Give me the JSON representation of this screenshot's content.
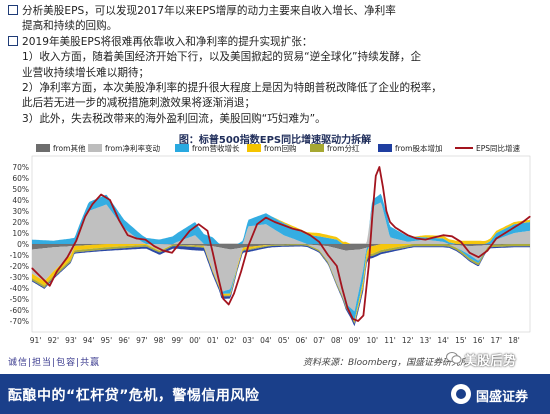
{
  "bullets": [
    "分析美股EPS，可以发现2017年以来EPS增厚的动力主要来自收入增长、净利率",
    "提高和持续的回购。",
    "2019年美股EPS将很难再依靠收入和净利率的提升实现扩张：",
    "1）收入方面，随着美国经济开始下行，以及美国掀起的贸易“逆全球化”持续发酵，企",
    "业营收持续增长难以期待；",
    "2）净利率方面，本次美股净利率的提升很大程度上是因为特朗普税改降低了企业的税率，",
    "此后若无进一步的减税措施刺激效果将逐渐消退；",
    "3）此外，失去税改带来的海外盈利回流，美股回购“巧妇难为”。"
  ],
  "chart_data": {
    "type": "area",
    "title": "图：标普500指数EPS同比增速驱动力拆解",
    "ylim": [
      -80,
      80
    ],
    "yticks": [
      "70%",
      "60%",
      "50%",
      "40%",
      "30%",
      "20%",
      "10%",
      "0%",
      "-10%",
      "-20%",
      "-30%",
      "-40%",
      "-50%",
      "-60%",
      "-70%"
    ],
    "ytick_values": [
      70,
      60,
      50,
      40,
      30,
      20,
      10,
      0,
      -10,
      -20,
      -30,
      -40,
      -50,
      -60,
      -70
    ],
    "xticks": [
      "91'",
      "92'",
      "93'",
      "94'",
      "95'",
      "96'",
      "97'",
      "98'",
      "99'",
      "00'",
      "01'",
      "02'",
      "03'",
      "04'",
      "05'",
      "06'",
      "07'",
      "08'",
      "09'",
      "10'",
      "11'",
      "12'",
      "13'",
      "14'",
      "15'",
      "16'",
      "17'",
      "18'"
    ],
    "x_years": [
      1991,
      1992,
      1993,
      1994,
      1995,
      1996,
      1997,
      1998,
      1999,
      2000,
      2001,
      2002,
      2003,
      2004,
      2005,
      2006,
      2007,
      2008,
      2009,
      2010,
      2011,
      2012,
      2013,
      2014,
      2015,
      2016,
      2017,
      2018
    ],
    "xlim": [
      1990.8,
      2018.9
    ],
    "legend_placement": "top",
    "series": [
      {
        "name": "from其他",
        "color": "#6d6d6d",
        "kind": "stacked",
        "x": [
          1990.8,
          1992,
          1994,
          1995,
          1996,
          1998,
          2001,
          2002,
          2002.8,
          2004,
          2006,
          2007.5,
          2008.5,
          2009.3,
          2010,
          2010.5,
          2012,
          2014,
          2015.5,
          2016.5,
          2018,
          2018.9
        ],
        "values": [
          -5,
          -3,
          -1,
          0,
          0,
          0,
          -2,
          -5,
          -3,
          -1,
          0,
          -2,
          -6,
          -5,
          -2,
          0,
          0,
          0,
          -2,
          -1,
          0,
          0
        ]
      },
      {
        "name": "from净利率变动",
        "color": "#bdbdbd",
        "kind": "stacked",
        "x": [
          1990.8,
          1991.5,
          1992,
          1993,
          1993.5,
          1994,
          1995,
          1996,
          1997,
          1998,
          1999,
          2000,
          2000.5,
          2001,
          2001.5,
          2002,
          2003,
          2004,
          2005,
          2006,
          2007,
          2007.5,
          2008,
          2008.5,
          2009,
          2009.5,
          2010,
          2010.5,
          2011,
          2012,
          2013,
          2014,
          2015,
          2015.5,
          2016,
          2016.5,
          2017,
          2018,
          2018.9
        ],
        "values": [
          -22,
          -30,
          -22,
          -8,
          12,
          30,
          36,
          14,
          2,
          -6,
          2,
          8,
          0,
          -22,
          -40,
          -36,
          16,
          18,
          8,
          2,
          -4,
          -14,
          -32,
          -48,
          -56,
          -18,
          34,
          38,
          6,
          2,
          4,
          2,
          -4,
          -8,
          -14,
          -2,
          4,
          10,
          12
        ]
      },
      {
        "name": "from营收增长",
        "color": "#29a9e0",
        "kind": "stacked",
        "x": [
          1990.8,
          1992,
          1993,
          1994,
          1995,
          1996,
          1997,
          1998,
          1999,
          2000,
          2001,
          2001.5,
          2002,
          2003,
          2004,
          2005,
          2006,
          2007,
          2008,
          2008.5,
          2009,
          2009.5,
          2010,
          2011,
          2012,
          2013,
          2014,
          2015,
          2015.5,
          2016,
          2016.5,
          2017,
          2018,
          2018.9
        ],
        "values": [
          4,
          3,
          5,
          8,
          9,
          8,
          6,
          4,
          8,
          12,
          6,
          -2,
          -4,
          6,
          10,
          11,
          9,
          7,
          4,
          -2,
          -8,
          -10,
          6,
          10,
          5,
          2,
          3,
          -1,
          -3,
          -2,
          1,
          6,
          8,
          8
        ]
      },
      {
        "name": "from回购",
        "color": "#f5c400",
        "kind": "stacked",
        "x": [
          1990.8,
          1993,
          1995,
          1997,
          1999,
          2001,
          2003,
          2005,
          2007,
          2008.5,
          2009.5,
          2010,
          2011,
          2013,
          2015,
          2016,
          2017,
          2018,
          2018.9
        ],
        "values": [
          -4,
          -4,
          -3,
          -1,
          0,
          -1,
          -2,
          1,
          3,
          2,
          -5,
          -7,
          -4,
          2,
          3,
          3,
          2,
          2,
          2
        ]
      },
      {
        "name": "from分红",
        "color": "#a6a832",
        "kind": "stacked",
        "x": [
          1990.8,
          1995,
          2000,
          2005,
          2010,
          2015,
          2018.9
        ],
        "values": [
          -2,
          -2,
          -1,
          -1,
          -2,
          -2,
          -2
        ]
      },
      {
        "name": "from股本增加",
        "color": "#1f3ea0",
        "kind": "stacked",
        "x": [
          1990.8,
          1994,
          1998,
          2000,
          2002,
          2005,
          2008,
          2009.5,
          2010,
          2012,
          2015,
          2018.9
        ],
        "values": [
          -1,
          -1,
          -2,
          -3,
          -2,
          -1,
          -1,
          -3,
          -2,
          -1,
          -1,
          -1
        ]
      },
      {
        "name": "EPS同比增速",
        "color": "#a3141e",
        "kind": "line",
        "x": [
          1990.8,
          1991.3,
          1991.8,
          1992.2,
          1992.8,
          1993.3,
          1993.8,
          1994.2,
          1994.7,
          1995.2,
          1995.7,
          1996.2,
          1996.7,
          1997.2,
          1997.7,
          1998.2,
          1998.7,
          1999.2,
          1999.7,
          2000.2,
          2000.7,
          2001.0,
          2001.3,
          2001.6,
          2001.9,
          2002.2,
          2002.6,
          2003.0,
          2003.5,
          2004.0,
          2004.5,
          2005.0,
          2005.5,
          2006.0,
          2006.5,
          2007.0,
          2007.5,
          2008.0,
          2008.3,
          2008.6,
          2008.9,
          2009.2,
          2009.5,
          2009.8,
          2010.0,
          2010.2,
          2010.4,
          2010.6,
          2010.8,
          2011.0,
          2011.3,
          2011.6,
          2012.0,
          2012.5,
          2013.0,
          2013.5,
          2014.0,
          2014.5,
          2015.0,
          2015.5,
          2016.0,
          2016.5,
          2017.0,
          2017.5,
          2018.0,
          2018.5,
          2018.9
        ],
        "values": [
          -22,
          -30,
          -38,
          -25,
          -12,
          3,
          25,
          36,
          45,
          40,
          22,
          8,
          5,
          4,
          -2,
          -6,
          -8,
          2,
          12,
          18,
          12,
          -8,
          -30,
          -50,
          -55,
          -45,
          -25,
          -2,
          18,
          24,
          20,
          17,
          14,
          12,
          8,
          2,
          -10,
          -20,
          -40,
          -58,
          -68,
          -70,
          -65,
          -20,
          25,
          62,
          70,
          52,
          30,
          20,
          15,
          12,
          8,
          5,
          4,
          6,
          8,
          7,
          2,
          -8,
          -12,
          -6,
          5,
          10,
          15,
          20,
          25
        ]
      }
    ]
  },
  "footer": {
    "nav": "诚信|担当|包容|共赢",
    "source": "资料来源：Bloomberg，国盛证券研究所",
    "watermark": "美股后势"
  },
  "banner": {
    "text": "酝酿中的“杠杆贷”危机，警惕信用风险",
    "logo": "国盛证券"
  }
}
